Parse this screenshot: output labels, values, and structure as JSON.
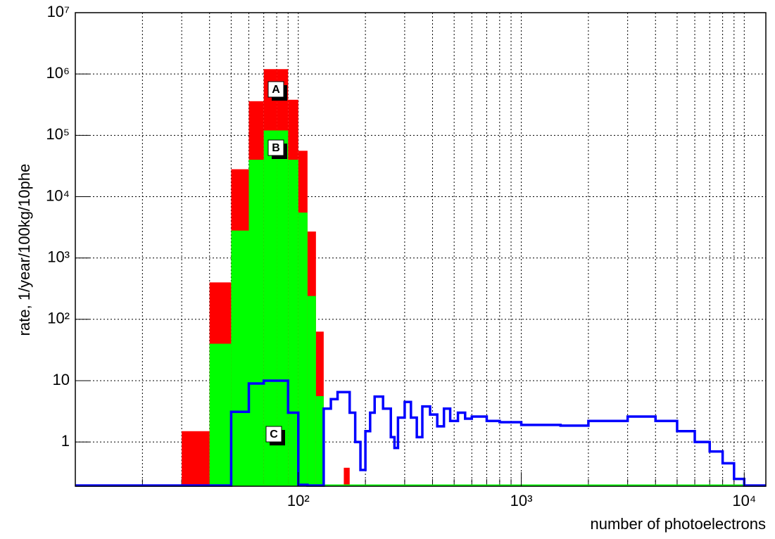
{
  "chart_data": {
    "type": "histogram",
    "x_label": "number of photoelectrons",
    "y_label": "rate,  1/year/100kg/10phe",
    "log_x": true,
    "log_y": true,
    "grid": true,
    "xlim": [
      10,
      12500
    ],
    "ylim": [
      0.19,
      10000000
    ],
    "xticks": [
      {
        "value": 100,
        "label": "10²"
      },
      {
        "value": 1000,
        "label": "10³"
      },
      {
        "value": 10000,
        "label": "10⁴"
      }
    ],
    "xminorticks": [
      20,
      30,
      40,
      50,
      60,
      70,
      80,
      90,
      200,
      300,
      400,
      500,
      600,
      700,
      800,
      900,
      2000,
      3000,
      4000,
      5000,
      6000,
      7000,
      8000,
      9000
    ],
    "yticks": [
      {
        "value": 1,
        "label": "1"
      },
      {
        "value": 10,
        "label": "10"
      },
      {
        "value": 100,
        "label": "10²"
      },
      {
        "value": 1000,
        "label": "10³"
      },
      {
        "value": 10000,
        "label": "10⁴"
      },
      {
        "value": 100000,
        "label": "10⁵"
      },
      {
        "value": 1000000,
        "label": "10⁶"
      },
      {
        "value": 10000000,
        "label": "10⁷"
      }
    ],
    "series": [
      {
        "color": "#ff0000",
        "style": "filled",
        "bins": [
          30,
          40,
          50,
          60,
          70,
          80,
          90,
          100,
          110,
          120,
          130,
          140,
          150,
          160,
          170
        ],
        "values": [
          1.5,
          400,
          28000,
          360000,
          1200000,
          1200000,
          380000,
          56000,
          2700,
          63,
          0,
          0,
          0,
          0.38
        ]
      },
      {
        "color": "#00ff00",
        "style": "filled",
        "bins": [
          30,
          40,
          50,
          60,
          70,
          80,
          90,
          100,
          110,
          120,
          130,
          140,
          150,
          160,
          170
        ],
        "values": [
          0,
          40,
          2800,
          40000,
          120000,
          120000,
          40000,
          5500,
          240,
          5.6,
          0,
          0,
          0,
          0
        ]
      },
      {
        "color": "#0000ff",
        "style": "step",
        "bins": [
          40,
          50,
          60,
          70,
          90,
          100,
          110,
          130,
          140,
          150,
          170,
          180,
          190,
          200,
          210,
          220,
          240,
          260,
          270,
          280,
          300,
          320,
          340,
          360,
          390,
          420,
          450,
          480,
          520,
          560,
          600,
          700,
          800,
          1000,
          1500,
          2000,
          3000,
          4000,
          5000,
          6000,
          7000,
          8000,
          9000,
          10000
        ],
        "values": [
          0,
          3.1,
          9,
          10,
          3,
          0.2,
          0,
          3.5,
          5,
          6.5,
          3,
          1,
          0.35,
          1.5,
          3,
          5.5,
          3.5,
          1.2,
          0.8,
          2.5,
          4.5,
          2.5,
          1.2,
          3.8,
          2.8,
          1.8,
          3.5,
          2.2,
          3,
          2.4,
          2.6,
          2.2,
          2.1,
          1.9,
          1.85,
          2.2,
          2.6,
          2.2,
          1.5,
          1,
          0.7,
          0.45,
          0.25
        ]
      }
    ],
    "annotations": [
      "A",
      "B",
      "C"
    ]
  }
}
